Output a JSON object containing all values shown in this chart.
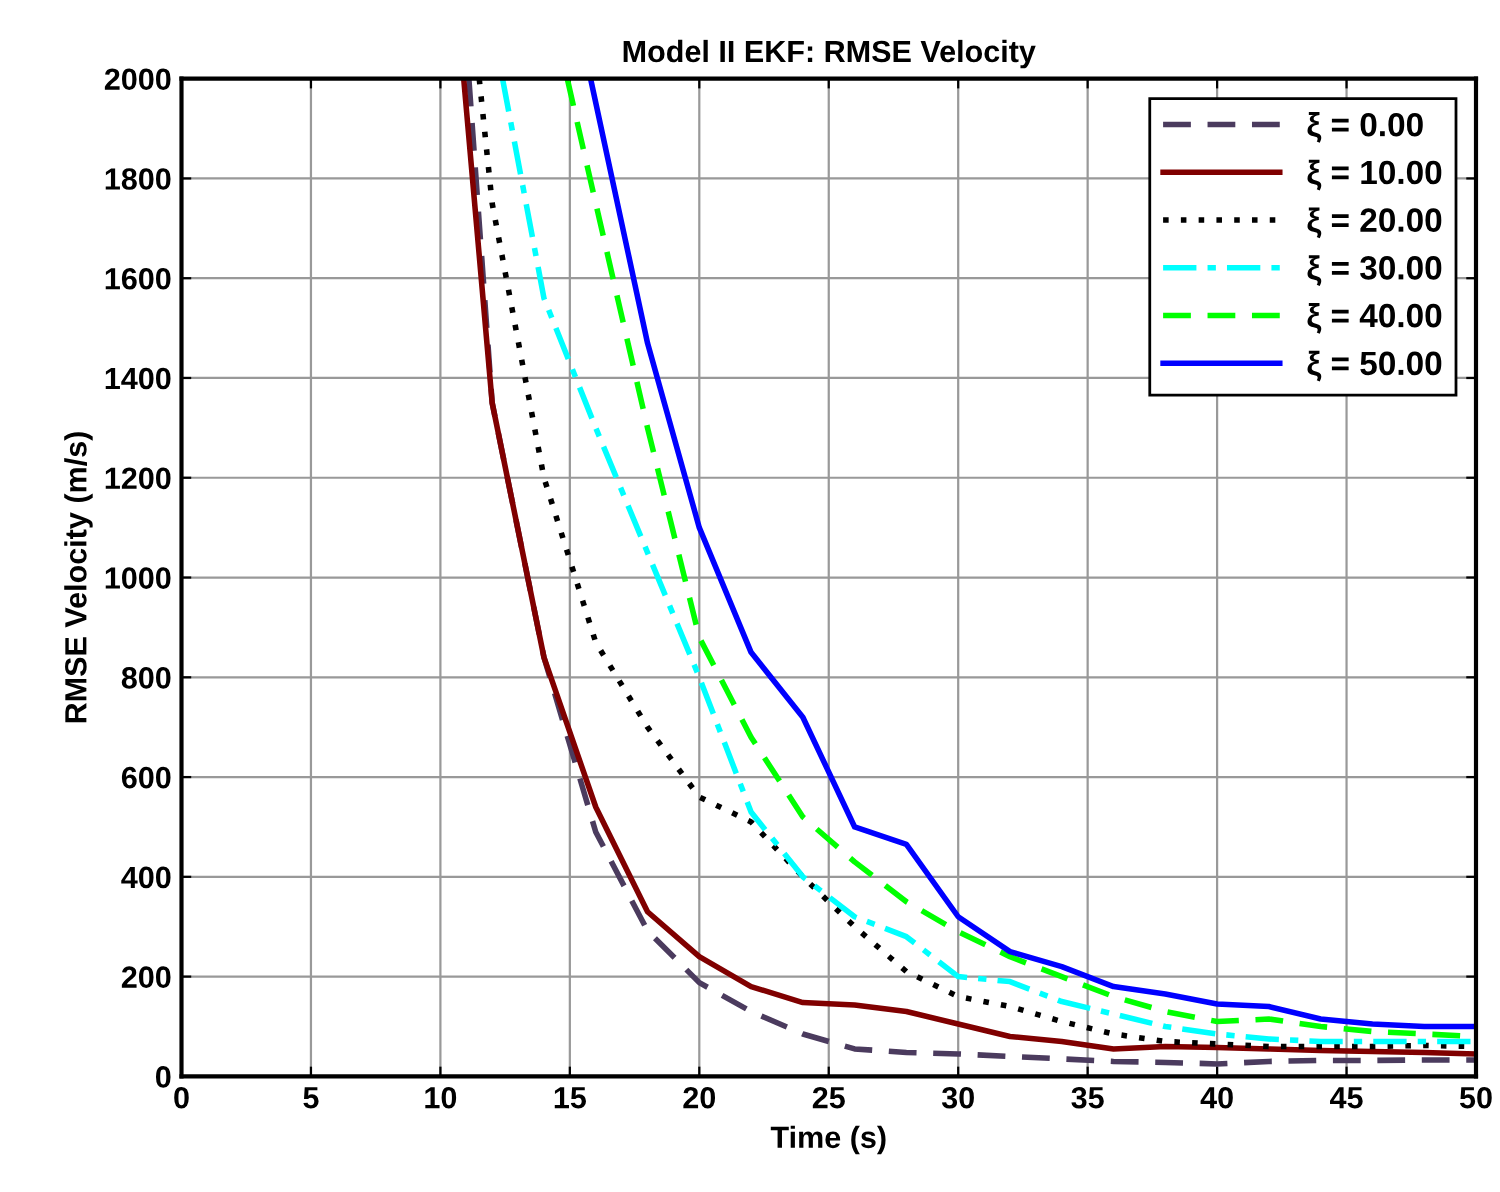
{
  "chart_data": {
    "type": "line",
    "title": "Model II EKF: RMSE Velocity",
    "xlabel": "Time (s)",
    "ylabel": "RMSE Velocity (m/s)",
    "xlim": [
      0,
      50
    ],
    "ylim": [
      0,
      2000
    ],
    "xticks": [
      0,
      5,
      10,
      15,
      20,
      25,
      30,
      35,
      40,
      45,
      50
    ],
    "yticks": [
      0,
      200,
      400,
      600,
      800,
      1000,
      1200,
      1400,
      1600,
      1800,
      2000
    ],
    "grid": true,
    "legend": "top right",
    "marker": "none",
    "series": [
      {
        "name": "ξ = 0.00",
        "color": "#4b3b5e",
        "line_style": "dashed",
        "x": [
          11.1,
          12,
          14,
          16,
          18,
          20,
          22,
          24,
          26,
          28,
          30,
          32,
          34,
          36,
          38,
          40,
          42,
          44,
          46,
          48,
          50
        ],
        "values": [
          2000,
          1350,
          840,
          490,
          292,
          188,
          130,
          85,
          55,
          48,
          45,
          40,
          35,
          30,
          28,
          25,
          30,
          32,
          32,
          33,
          33
        ]
      },
      {
        "name": "ξ = 10.00",
        "color": "#800000",
        "line_style": "solid",
        "x": [
          10.9,
          12,
          14,
          16,
          18,
          20,
          22,
          24,
          26,
          28,
          30,
          32,
          34,
          36,
          38,
          40,
          42,
          44,
          46,
          48,
          50
        ],
        "values": [
          2000,
          1350,
          840,
          540,
          330,
          240,
          180,
          148,
          143,
          130,
          105,
          80,
          70,
          55,
          60,
          58,
          55,
          52,
          50,
          48,
          45
        ]
      },
      {
        "name": "ξ = 20.00",
        "color": "#000000",
        "line_style": "dotted",
        "x": [
          11.5,
          12,
          14,
          16,
          18,
          20,
          22,
          24,
          26,
          28,
          30,
          32,
          34,
          36,
          38,
          40,
          42,
          44,
          46,
          48,
          50
        ],
        "values": [
          2000,
          1750,
          1200,
          870,
          700,
          560,
          510,
          400,
          300,
          210,
          160,
          140,
          110,
          85,
          70,
          65,
          60,
          60,
          60,
          62,
          60
        ]
      },
      {
        "name": "ξ = 30.00",
        "color": "#00ffff",
        "line_style": "dashdot",
        "x": [
          12.4,
          14,
          16,
          18,
          20,
          22,
          24,
          26,
          28,
          30,
          32,
          34,
          36,
          38,
          40,
          42,
          44,
          46,
          48,
          50
        ],
        "values": [
          2000,
          1560,
          1300,
          1050,
          800,
          530,
          400,
          320,
          280,
          200,
          190,
          150,
          125,
          100,
          85,
          75,
          70,
          70,
          70,
          70
        ]
      },
      {
        "name": "ξ = 40.00",
        "color": "#00ff00",
        "line_style": "dashed",
        "x": [
          14.9,
          16,
          18,
          20,
          22,
          24,
          26,
          28,
          30,
          32,
          34,
          36,
          38,
          40,
          42,
          44,
          46,
          48,
          50
        ],
        "values": [
          2000,
          1750,
          1300,
          880,
          680,
          520,
          430,
          350,
          290,
          240,
          200,
          160,
          130,
          110,
          115,
          100,
          90,
          85,
          80
        ]
      },
      {
        "name": "ξ = 50.00",
        "color": "#0000ff",
        "line_style": "solid",
        "x": [
          15.8,
          18,
          20,
          22,
          24,
          26,
          28,
          30,
          32,
          34,
          36,
          38,
          40,
          42,
          44,
          46,
          48,
          50
        ],
        "values": [
          2000,
          1470,
          1100,
          850,
          720,
          500,
          465,
          320,
          250,
          220,
          180,
          165,
          145,
          140,
          115,
          105,
          100,
          100
        ]
      }
    ]
  }
}
